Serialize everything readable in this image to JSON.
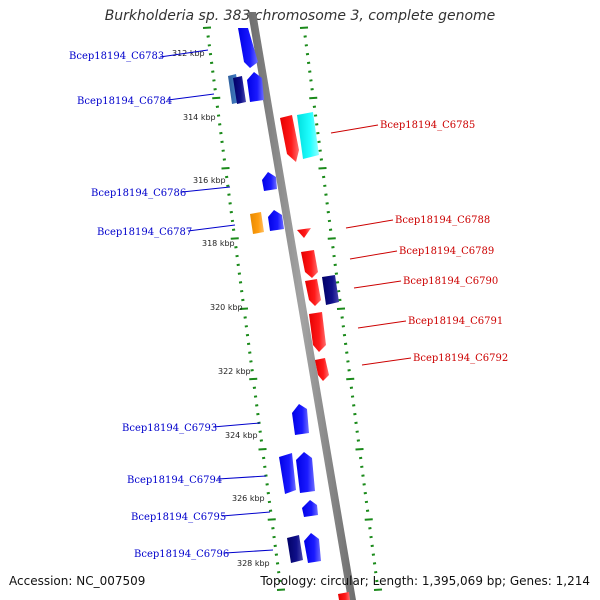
{
  "title": "Burkholderia sp. 383 chromosome 3, complete genome",
  "accession": "Accession: NC_007509",
  "summary": "Topology: circular; Length: 1,395,069 bp; Genes: 1,214",
  "colors": {
    "forward_label": "#0000cc",
    "reverse_label": "#cc0000",
    "tick": "#1a8a1a",
    "backbone": "#888888"
  },
  "ticks": [
    "312 kbp",
    "314 kbp",
    "316 kbp",
    "318 kbp",
    "320 kbp",
    "322 kbp",
    "324 kbp",
    "326 kbp",
    "328 kbp"
  ],
  "forward_labels": [
    "Bcep18194_C6783",
    "Bcep18194_C6784",
    "Bcep18194_C6786",
    "Bcep18194_C6787",
    "Bcep18194_C6793",
    "Bcep18194_C6794",
    "Bcep18194_C6795",
    "Bcep18194_C6796"
  ],
  "reverse_labels": [
    "Bcep18194_C6785",
    "Bcep18194_C6788",
    "Bcep18194_C6789",
    "Bcep18194_C6790",
    "Bcep18194_C6791",
    "Bcep18194_C6792"
  ]
}
